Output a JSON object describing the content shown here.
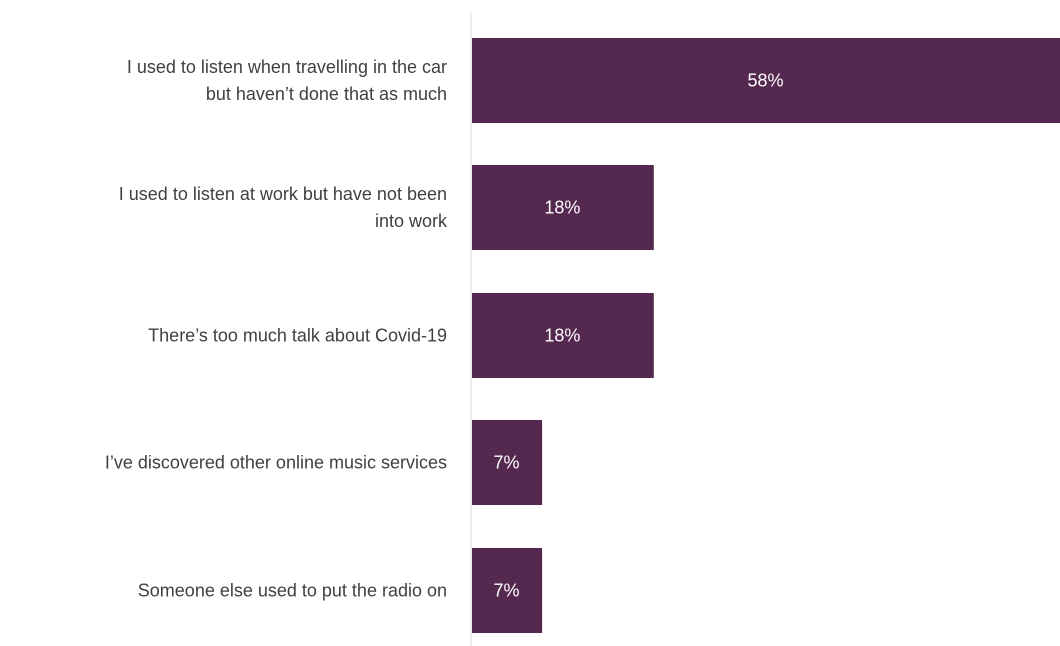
{
  "chart_data": {
    "type": "bar",
    "orientation": "horizontal",
    "categories": [
      [
        "I used to listen when travelling in the car",
        "but haven’t done that as much"
      ],
      [
        "I used to listen at work but have not been",
        "into work"
      ],
      [
        "There’s too much talk about Covid-19"
      ],
      [
        "I’ve discovered other online music services"
      ],
      [
        "Someone else used to put the radio on"
      ]
    ],
    "values": [
      58,
      18,
      18,
      7,
      7
    ],
    "value_labels": [
      "58%",
      "18%",
      "18%",
      "7%",
      "7%"
    ],
    "bar_color": "#55284f",
    "axis_color": "#d9d9d9",
    "label_color": "#404040",
    "value_label_color": "#ffffff",
    "xlim": [
      0,
      58
    ],
    "grid": false,
    "legend": "none"
  }
}
